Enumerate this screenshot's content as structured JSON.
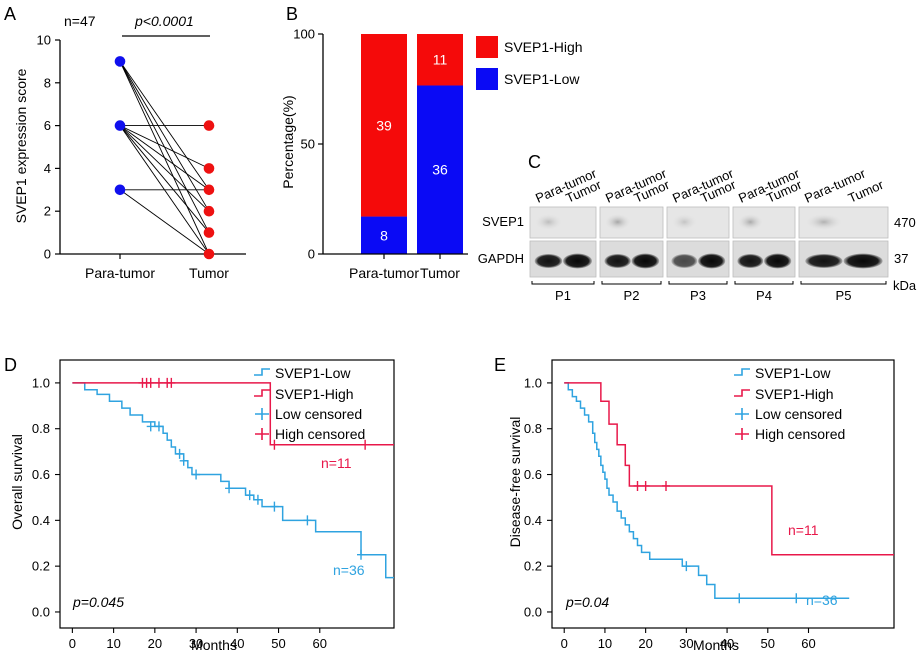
{
  "chart_data": [
    {
      "panel": "A",
      "type": "scatter",
      "subtype": "paired-dot",
      "annotation_n": "n=47",
      "annotation_p": "p<0.0001",
      "ylabel": "SVEP1 expression score",
      "xlabel": "",
      "categories": [
        "Para-tumor",
        "Tumor"
      ],
      "ylim": [
        0,
        10
      ],
      "yticks": [
        "0",
        "2",
        "4",
        "6",
        "8",
        "10"
      ],
      "para_values": [
        9,
        6,
        3
      ],
      "tumor_values": [
        6,
        4,
        3,
        2,
        1,
        0
      ],
      "pairs": [
        [
          9,
          3
        ],
        [
          9,
          2
        ],
        [
          9,
          1
        ],
        [
          9,
          0
        ],
        [
          6,
          6
        ],
        [
          6,
          4
        ],
        [
          6,
          3
        ],
        [
          6,
          2
        ],
        [
          6,
          1
        ],
        [
          6,
          0
        ],
        [
          3,
          3
        ],
        [
          3,
          0
        ]
      ],
      "colors": {
        "para": "#1010ee",
        "tumor": "#ee1111"
      }
    },
    {
      "panel": "B",
      "type": "bar",
      "subtype": "stacked-percent",
      "ylabel": "Percentage(%)",
      "categories": [
        "Para-tumor",
        "Tumor"
      ],
      "ylim": [
        0,
        100
      ],
      "yticks": [
        "0",
        "50",
        "100"
      ],
      "series": [
        {
          "name": "SVEP1-Low",
          "values": [
            8,
            36
          ],
          "labels": [
            "8",
            "36"
          ],
          "color": "#0a0af5"
        },
        {
          "name": "SVEP1-High",
          "values": [
            39,
            11
          ],
          "labels": [
            "39",
            "11"
          ],
          "color": "#f50a0a"
        }
      ]
    },
    {
      "panel": "D",
      "type": "line",
      "subtype": "kaplan-meier",
      "xlabel": "Months",
      "ylabel": "Overall survival",
      "xlim": [
        -3,
        78
      ],
      "ylim": [
        -0.07,
        1.1
      ],
      "xticks": [
        0,
        10,
        20,
        30,
        40,
        50,
        60
      ],
      "xtick_labels": [
        "0",
        "10",
        "20",
        "30",
        "40",
        "50",
        "60"
      ],
      "yticks": [
        0,
        0.2,
        0.4,
        0.6,
        0.8,
        1.0
      ],
      "ytick_labels": [
        "0.0",
        "0.2",
        "0.4",
        "0.6",
        "0.8",
        "1.0"
      ],
      "legend": [
        "SVEP1-Low",
        "SVEP1-High",
        "Low censored",
        "High censored"
      ],
      "annotation_p": "p=0.045",
      "series": [
        {
          "name": "SVEP1-Low",
          "color": "#2fa3e0",
          "n_label": "n=36",
          "steps": [
            [
              0,
              1.0
            ],
            [
              3,
              0.97
            ],
            [
              6,
              0.95
            ],
            [
              9,
              0.92
            ],
            [
              12,
              0.89
            ],
            [
              14,
              0.86
            ],
            [
              17,
              0.83
            ],
            [
              20,
              0.81
            ],
            [
              22,
              0.78
            ],
            [
              23,
              0.75
            ],
            [
              24,
              0.72
            ],
            [
              25,
              0.69
            ],
            [
              27,
              0.66
            ],
            [
              28,
              0.63
            ],
            [
              29,
              0.6
            ],
            [
              36,
              0.57
            ],
            [
              38,
              0.54
            ],
            [
              42,
              0.51
            ],
            [
              44,
              0.49
            ],
            [
              46,
              0.46
            ],
            [
              51,
              0.4
            ],
            [
              59,
              0.35
            ],
            [
              70,
              0.25
            ],
            [
              76,
              0.15
            ],
            [
              78,
              0.15
            ]
          ],
          "censored": [
            [
              19,
              0.81
            ],
            [
              21,
              0.81
            ],
            [
              26,
              0.69
            ],
            [
              27,
              0.66
            ],
            [
              30,
              0.6
            ],
            [
              38,
              0.54
            ],
            [
              43,
              0.51
            ],
            [
              45,
              0.49
            ],
            [
              49,
              0.46
            ],
            [
              57,
              0.4
            ],
            [
              70,
              0.25
            ]
          ]
        },
        {
          "name": "SVEP1-High",
          "color": "#e8184a",
          "n_label": "n=11",
          "steps": [
            [
              0,
              1.0
            ],
            [
              48,
              1.0
            ],
            [
              48,
              0.73
            ],
            [
              78,
              0.73
            ]
          ],
          "censored": [
            [
              17,
              1.0
            ],
            [
              18,
              1.0
            ],
            [
              19,
              1.0
            ],
            [
              21,
              1.0
            ],
            [
              23,
              1.0
            ],
            [
              24,
              1.0
            ],
            [
              49,
              0.73
            ],
            [
              71,
              0.73
            ]
          ]
        }
      ]
    },
    {
      "panel": "E",
      "type": "line",
      "subtype": "kaplan-meier",
      "xlabel": "Months",
      "ylabel": "Disease-free survival",
      "xlim": [
        -3,
        81
      ],
      "ylim": [
        -0.07,
        1.1
      ],
      "xticks": [
        0,
        10,
        20,
        30,
        40,
        50,
        60
      ],
      "xtick_labels": [
        "0",
        "10",
        "20",
        "30",
        "40",
        "50",
        "60"
      ],
      "yticks": [
        0,
        0.2,
        0.4,
        0.6,
        0.8,
        1.0
      ],
      "ytick_labels": [
        "0.0",
        "0.2",
        "0.4",
        "0.6",
        "0.8",
        "1.0"
      ],
      "legend": [
        "SVEP1-Low",
        "SVEP1-High",
        "Low censored",
        "High censored"
      ],
      "annotation_p": "p=0.04",
      "series": [
        {
          "name": "SVEP1-Low",
          "color": "#2fa3e0",
          "n_label": "n=36",
          "steps": [
            [
              0,
              1.0
            ],
            [
              1,
              0.97
            ],
            [
              2,
              0.94
            ],
            [
              3,
              0.92
            ],
            [
              4,
              0.89
            ],
            [
              5,
              0.86
            ],
            [
              6,
              0.83
            ],
            [
              7,
              0.78
            ],
            [
              7.5,
              0.74
            ],
            [
              8,
              0.71
            ],
            [
              8.5,
              0.68
            ],
            [
              9,
              0.64
            ],
            [
              9.5,
              0.61
            ],
            [
              10,
              0.58
            ],
            [
              10.5,
              0.54
            ],
            [
              11,
              0.51
            ],
            [
              12,
              0.48
            ],
            [
              13,
              0.44
            ],
            [
              14,
              0.41
            ],
            [
              15,
              0.38
            ],
            [
              16,
              0.35
            ],
            [
              17,
              0.32
            ],
            [
              18,
              0.29
            ],
            [
              19,
              0.26
            ],
            [
              21,
              0.23
            ],
            [
              29,
              0.2
            ],
            [
              33,
              0.16
            ],
            [
              35,
              0.12
            ],
            [
              37,
              0.06
            ],
            [
              70,
              0.06
            ]
          ],
          "censored": [
            [
              30,
              0.2
            ],
            [
              43,
              0.06
            ],
            [
              57,
              0.06
            ]
          ]
        },
        {
          "name": "SVEP1-High",
          "color": "#e8184a",
          "n_label": "n=11",
          "steps": [
            [
              0,
              1.0
            ],
            [
              9,
              1.0
            ],
            [
              9,
              0.92
            ],
            [
              11,
              0.82
            ],
            [
              13,
              0.73
            ],
            [
              15,
              0.64
            ],
            [
              16,
              0.55
            ],
            [
              51,
              0.55
            ],
            [
              51,
              0.25
            ],
            [
              81,
              0.25
            ]
          ],
          "censored": [
            [
              18,
              0.55
            ],
            [
              20,
              0.55
            ],
            [
              25,
              0.55
            ]
          ]
        }
      ]
    }
  ],
  "western_blot": {
    "panel": "C",
    "lane_labels": [
      "Para-tumor",
      "Tumor"
    ],
    "rows": [
      "SVEP1",
      "GAPDH"
    ],
    "kda_values": [
      "470",
      "37"
    ],
    "kda_unit": "kDa",
    "patients": [
      "P1",
      "P2",
      "P3",
      "P4",
      "P5"
    ]
  }
}
